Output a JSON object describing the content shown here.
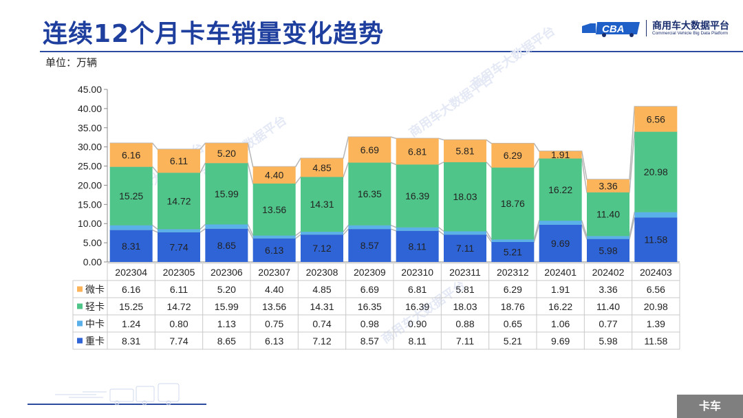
{
  "title": "连续12个月卡车销量变化趋势",
  "unit_label": "单位：万辆",
  "logo": {
    "cn": "商用车大数据平台",
    "en": "Commercial Vehicle Big Data Platform",
    "mark": "CBA"
  },
  "watermark": "商用车大数据平台",
  "bottom_tag": "卡车",
  "colors": {
    "重卡": "#2f64d6",
    "中卡": "#5ab0e8",
    "轻卡": "#4fc58a",
    "微卡": "#fbb45a",
    "title": "#1f3f9e"
  },
  "chart_data": {
    "type": "bar",
    "stacked": true,
    "categories": [
      "202304",
      "202305",
      "202306",
      "202307",
      "202308",
      "202309",
      "202310",
      "202311",
      "202312",
      "202401",
      "202402",
      "202403"
    ],
    "series": [
      {
        "name": "重卡",
        "values": [
          8.31,
          7.74,
          8.65,
          6.13,
          7.12,
          8.57,
          8.11,
          7.11,
          5.21,
          9.69,
          5.98,
          11.58
        ]
      },
      {
        "name": "中卡",
        "values": [
          1.24,
          0.8,
          1.13,
          0.75,
          0.74,
          0.98,
          0.9,
          0.88,
          0.65,
          1.06,
          0.77,
          1.39
        ]
      },
      {
        "name": "轻卡",
        "values": [
          15.25,
          14.72,
          15.99,
          13.56,
          14.31,
          16.35,
          16.39,
          18.03,
          18.76,
          16.22,
          11.4,
          20.98
        ]
      },
      {
        "name": "微卡",
        "values": [
          6.16,
          6.11,
          5.2,
          4.4,
          4.85,
          6.69,
          6.81,
          5.81,
          6.29,
          1.91,
          3.36,
          6.56
        ]
      }
    ],
    "table_row_order": [
      "微卡",
      "轻卡",
      "中卡",
      "重卡"
    ],
    "labeled_series": [
      "重卡",
      "轻卡",
      "微卡"
    ],
    "ylim": [
      0,
      45
    ],
    "yticks": [
      "0.00",
      "5.00",
      "10.00",
      "15.00",
      "20.00",
      "25.00",
      "30.00",
      "35.00",
      "40.00",
      "45.00"
    ],
    "grid": false,
    "series_lines": true,
    "legend": "data-table"
  }
}
